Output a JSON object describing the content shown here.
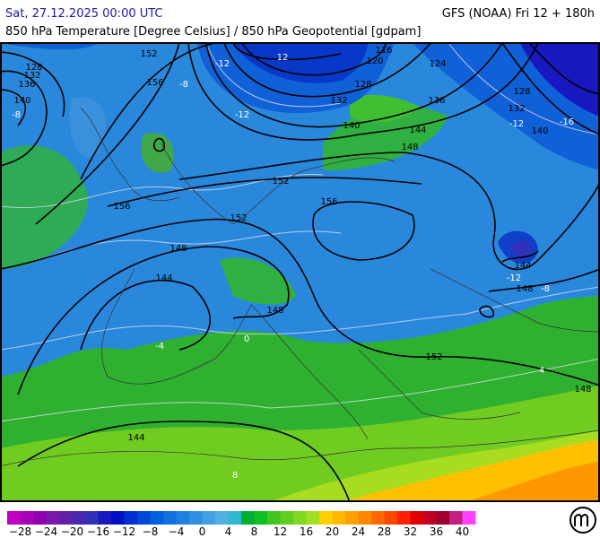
{
  "header": {
    "title": "Sat, 27.12.2025 00:00 UTC",
    "subtitle": "850 hPa Temperature [Degree Celsius] / 850 hPa Geopotential [gdpam]",
    "run": "GFS (NOAA) Fri 12 + 180h"
  },
  "geopotential_labels": [
    128,
    132,
    136,
    140,
    152,
    156,
    116,
    120,
    124,
    128,
    132,
    136,
    128,
    132,
    140,
    140,
    144,
    148,
    152,
    156,
    152,
    156,
    148,
    144,
    148,
    144,
    148,
    152,
    148,
    144
  ],
  "temperature_labels": [
    -12,
    12,
    -8,
    -8,
    -12,
    -12,
    -16,
    -12,
    -8,
    -4,
    0,
    4,
    8
  ],
  "colorbar": {
    "labels": [
      "−28",
      "−24",
      "−20",
      "−16",
      "−12",
      "−8",
      "−4",
      "0",
      "4",
      "8",
      "12",
      "16",
      "20",
      "24",
      "28",
      "32",
      "36",
      "40"
    ],
    "colors": [
      "#c000c0",
      "#a800b8",
      "#9000b0",
      "#7818a8",
      "#6020a8",
      "#4828b0",
      "#3030b8",
      "#1818c0",
      "#0010c8",
      "#0030d0",
      "#0048d8",
      "#0060e0",
      "#1070e0",
      "#2080e0",
      "#3090e0",
      "#40a0e0",
      "#50b0e0",
      "#30b8d0",
      "#00b030",
      "#10c020",
      "#40c820",
      "#60d020",
      "#80d820",
      "#a0e020",
      "#ffd000",
      "#ffb800",
      "#ffa000",
      "#ff8800",
      "#ff6800",
      "#ff4800",
      "#ff2000",
      "#e00000",
      "#c00020",
      "#a00030",
      "#c02080",
      "#ff40ff"
    ]
  }
}
